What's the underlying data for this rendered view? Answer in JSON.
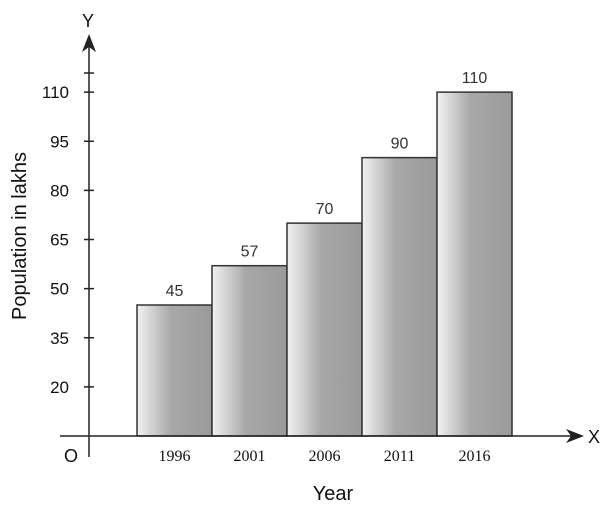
{
  "chart_data": {
    "type": "bar",
    "title": "",
    "xlabel": "Year",
    "ylabel": "Population in lakhs",
    "categories": [
      "1996",
      "2001",
      "2006",
      "2011",
      "2016"
    ],
    "values": [
      45,
      57,
      70,
      90,
      110
    ],
    "data_labels": [
      "45",
      "57",
      "70",
      "90",
      "110"
    ],
    "y_ticks": [
      20,
      35,
      50,
      65,
      80,
      95,
      110
    ],
    "y_tick_labels": [
      "20",
      "35",
      "50",
      "65",
      "80",
      "95",
      "110"
    ],
    "ylim": [
      5,
      125
    ],
    "grid": false,
    "legend": "none",
    "axis_letters": {
      "x": "X",
      "y": "Y",
      "origin": "O"
    },
    "colors": {
      "bar_edge": "#333333",
      "bar_dark": "#9a9a9a",
      "bar_light": "#f2f2f2",
      "axis": "#222222"
    }
  }
}
